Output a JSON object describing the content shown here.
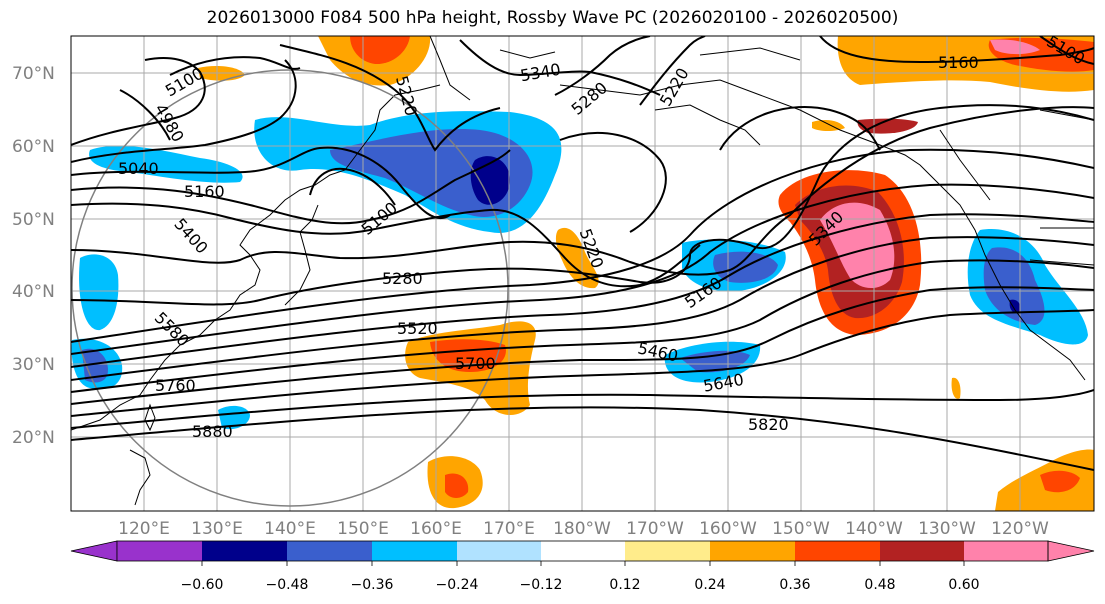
{
  "title": "2026013000 F084 500 hPa height, Rossby Wave PC (2026020100 - 2026020500)",
  "lat_labels": [
    "70°N",
    "60°N",
    "50°N",
    "40°N",
    "30°N",
    "20°N"
  ],
  "lon_labels": [
    "120°E",
    "130°E",
    "140°E",
    "150°E",
    "160°E",
    "170°E",
    "180°W",
    "170°W",
    "160°W",
    "150°W",
    "140°W",
    "130°W",
    "120°W"
  ],
  "contour_labels": [
    "5100",
    "4980",
    "5040",
    "5160",
    "5400",
    "5580",
    "5760",
    "5880",
    "5100",
    "5220",
    "5340",
    "5280",
    "5220",
    "5280",
    "5520",
    "5700",
    "5220",
    "5160",
    "5460",
    "5640",
    "5820",
    "5340",
    "5160",
    "5100"
  ],
  "colorbar": {
    "ticks": [
      "−0.60",
      "−0.48",
      "−0.36",
      "−0.24",
      "−0.12",
      "0.12",
      "0.24",
      "0.36",
      "0.48",
      "0.60"
    ],
    "colors": [
      "#9932cc",
      "#00008b",
      "#3a5fcd",
      "#00bfff",
      "#b0e2ff",
      "#ffffff",
      "#ffec8b",
      "#ffa500",
      "#ff4500",
      "#b22222",
      "#ff82ab"
    ]
  },
  "map_colors": {
    "ocean": "#ffffff",
    "grid": "#a8a8a8",
    "contour": "#000000"
  }
}
